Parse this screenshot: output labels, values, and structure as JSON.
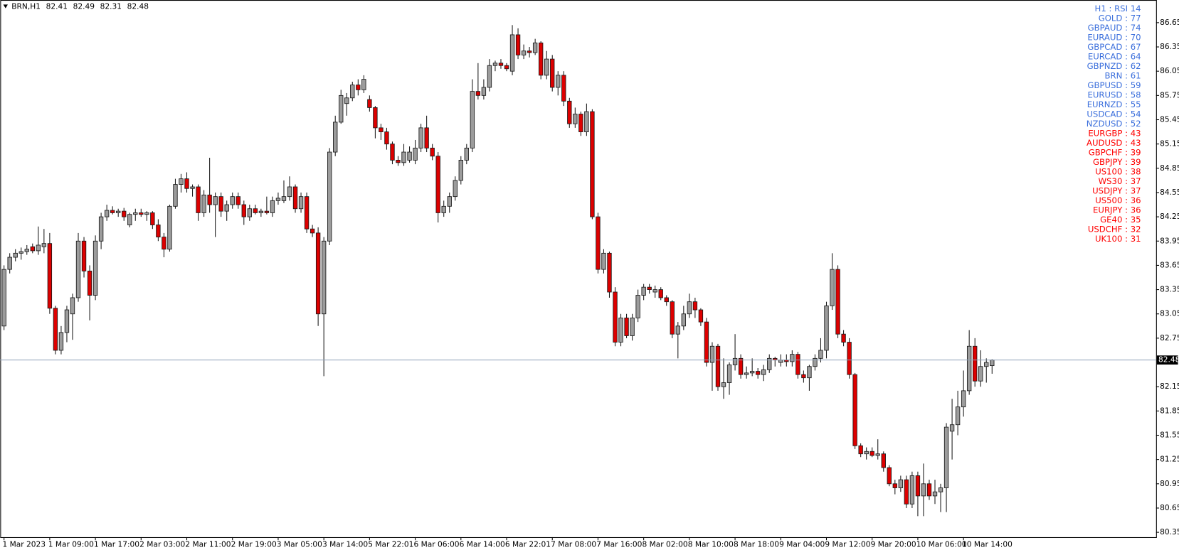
{
  "chart_data": {
    "type": "candlestick",
    "symbol": "BRN,H1",
    "header_ohlc": [
      82.41,
      82.49,
      82.31,
      82.48
    ],
    "current_price": 82.48,
    "up_color": "#9c9c9c",
    "down_color": "#dd0000",
    "outline_color": "#1a1a1a",
    "price_line_color": "#8fa0b8",
    "ylim": [
      80.29,
      86.93
    ],
    "yticks": [
      86.65,
      86.35,
      86.05,
      85.75,
      85.45,
      85.15,
      84.85,
      84.55,
      84.25,
      83.95,
      83.65,
      83.35,
      83.05,
      82.75,
      82.15,
      81.85,
      81.55,
      81.25,
      80.95,
      80.65,
      80.35
    ],
    "categories": [
      "1 Mar 2023",
      null,
      null,
      null,
      null,
      null,
      null,
      null,
      "1 Mar 09:00",
      null,
      null,
      null,
      null,
      null,
      null,
      null,
      "1 Mar 17:00",
      null,
      null,
      null,
      null,
      null,
      null,
      null,
      "2 Mar 03:00",
      null,
      null,
      null,
      null,
      null,
      null,
      null,
      "2 Mar 11:00",
      null,
      null,
      null,
      null,
      null,
      null,
      null,
      "2 Mar 19:00",
      null,
      null,
      null,
      null,
      null,
      null,
      null,
      "3 Mar 05:00",
      null,
      null,
      null,
      null,
      null,
      null,
      null,
      "3 Mar 14:00",
      null,
      null,
      null,
      null,
      null,
      null,
      null,
      "5 Mar 22:01",
      null,
      null,
      null,
      null,
      null,
      null,
      null,
      "6 Mar 06:00",
      null,
      null,
      null,
      null,
      null,
      null,
      null,
      "6 Mar 14:00",
      null,
      null,
      null,
      null,
      null,
      null,
      null,
      "6 Mar 22:01",
      null,
      null,
      null,
      null,
      null,
      null,
      null,
      "7 Mar 08:00",
      null,
      null,
      null,
      null,
      null,
      null,
      null,
      "7 Mar 16:00",
      null,
      null,
      null,
      null,
      null,
      null,
      null,
      "8 Mar 02:00",
      null,
      null,
      null,
      null,
      null,
      null,
      null,
      "8 Mar 10:00",
      null,
      null,
      null,
      null,
      null,
      null,
      null,
      "8 Mar 18:00",
      null,
      null,
      null,
      null,
      null,
      null,
      null,
      "9 Mar 04:00",
      null,
      null,
      null,
      null,
      null,
      null,
      null,
      "9 Mar 12:00",
      null,
      null,
      null,
      null,
      null,
      null,
      null,
      "9 Mar 20:00",
      null,
      null,
      null,
      null,
      null,
      null,
      null,
      "10 Mar 06:00",
      null,
      null,
      null,
      null,
      null,
      null,
      null,
      "10 Mar 14:00",
      null,
      null,
      null,
      null,
      null
    ],
    "ohlc": [
      [
        82.9,
        83.65,
        82.85,
        83.6
      ],
      [
        83.6,
        83.8,
        83.55,
        83.75
      ],
      [
        83.75,
        83.85,
        83.7,
        83.8
      ],
      [
        83.8,
        83.87,
        83.72,
        83.82
      ],
      [
        83.82,
        83.9,
        83.78,
        83.85
      ],
      [
        83.88,
        83.92,
        83.8,
        83.83
      ],
      [
        83.83,
        84.13,
        83.78,
        83.9
      ],
      [
        83.88,
        84.1,
        83.8,
        83.92
      ],
      [
        83.92,
        84.05,
        83.05,
        83.12
      ],
      [
        83.12,
        83.15,
        82.55,
        82.6
      ],
      [
        82.6,
        82.9,
        82.55,
        82.82
      ],
      [
        82.82,
        83.15,
        82.7,
        83.1
      ],
      [
        83.05,
        83.3,
        82.73,
        83.25
      ],
      [
        83.25,
        84.05,
        83.2,
        83.95
      ],
      [
        83.95,
        84.0,
        83.5,
        83.58
      ],
      [
        83.58,
        83.65,
        82.97,
        83.28
      ],
      [
        83.28,
        84.02,
        83.22,
        83.95
      ],
      [
        83.95,
        84.3,
        83.85,
        84.25
      ],
      [
        84.25,
        84.4,
        84.2,
        84.33
      ],
      [
        84.33,
        84.38,
        84.28,
        84.3
      ],
      [
        84.3,
        84.35,
        84.25,
        84.32
      ],
      [
        84.32,
        84.36,
        84.2,
        84.25
      ],
      [
        84.15,
        84.3,
        84.12,
        84.28
      ],
      [
        84.28,
        84.35,
        84.2,
        84.3
      ],
      [
        84.3,
        84.35,
        84.25,
        84.28
      ],
      [
        84.28,
        84.32,
        84.2,
        84.3
      ],
      [
        84.3,
        84.32,
        84.1,
        84.15
      ],
      [
        84.15,
        84.22,
        83.95,
        84.0
      ],
      [
        84.0,
        84.05,
        83.75,
        83.85
      ],
      [
        83.85,
        84.4,
        83.82,
        84.38
      ],
      [
        84.38,
        84.72,
        84.35,
        84.65
      ],
      [
        84.65,
        84.78,
        84.55,
        84.72
      ],
      [
        84.72,
        84.8,
        84.55,
        84.6
      ],
      [
        84.6,
        84.65,
        84.5,
        84.62
      ],
      [
        84.62,
        84.65,
        84.2,
        84.3
      ],
      [
        84.3,
        84.58,
        84.25,
        84.52
      ],
      [
        84.52,
        84.98,
        84.3,
        84.4
      ],
      [
        84.4,
        84.55,
        84.0,
        84.5
      ],
      [
        84.5,
        84.55,
        84.25,
        84.32
      ],
      [
        84.32,
        84.45,
        84.2,
        84.4
      ],
      [
        84.4,
        84.55,
        84.35,
        84.5
      ],
      [
        84.5,
        84.55,
        84.35,
        84.4
      ],
      [
        84.4,
        84.45,
        84.15,
        84.25
      ],
      [
        84.25,
        84.4,
        84.2,
        84.35
      ],
      [
        84.35,
        84.4,
        84.28,
        84.3
      ],
      [
        84.3,
        84.35,
        84.25,
        84.32
      ],
      [
        84.32,
        84.5,
        84.28,
        84.3
      ],
      [
        84.3,
        84.5,
        84.25,
        84.45
      ],
      [
        84.45,
        84.55,
        84.4,
        84.48
      ],
      [
        84.45,
        84.7,
        84.42,
        84.5
      ],
      [
        84.5,
        84.75,
        84.45,
        84.62
      ],
      [
        84.62,
        84.65,
        84.3,
        84.35
      ],
      [
        84.35,
        84.55,
        84.3,
        84.5
      ],
      [
        84.5,
        84.55,
        84.05,
        84.1
      ],
      [
        84.1,
        84.15,
        84.0,
        84.05
      ],
      [
        84.05,
        84.12,
        82.9,
        83.05
      ],
      [
        83.05,
        84.0,
        82.28,
        83.95
      ],
      [
        83.95,
        85.1,
        83.9,
        85.05
      ],
      [
        85.05,
        85.5,
        85.0,
        85.42
      ],
      [
        85.42,
        85.82,
        85.4,
        85.75
      ],
      [
        85.65,
        85.78,
        85.5,
        85.72
      ],
      [
        85.72,
        85.92,
        85.68,
        85.88
      ],
      [
        85.88,
        85.95,
        85.75,
        85.82
      ],
      [
        85.82,
        86.0,
        85.78,
        85.95
      ],
      [
        85.7,
        85.75,
        85.55,
        85.6
      ],
      [
        85.6,
        85.62,
        85.22,
        85.35
      ],
      [
        85.35,
        85.4,
        85.2,
        85.3
      ],
      [
        85.3,
        85.35,
        85.08,
        85.15
      ],
      [
        85.15,
        85.18,
        84.9,
        84.95
      ],
      [
        84.95,
        85.0,
        84.88,
        84.92
      ],
      [
        84.92,
        85.15,
        84.88,
        85.05
      ],
      [
        84.95,
        85.12,
        84.92,
        85.05
      ],
      [
        84.95,
        85.2,
        84.9,
        85.1
      ],
      [
        85.1,
        85.4,
        85.05,
        85.35
      ],
      [
        85.35,
        85.5,
        85.05,
        85.1
      ],
      [
        85.1,
        85.15,
        84.95,
        85.0
      ],
      [
        85.0,
        85.05,
        84.18,
        84.3
      ],
      [
        84.3,
        84.45,
        84.25,
        84.38
      ],
      [
        84.38,
        84.55,
        84.3,
        84.5
      ],
      [
        84.5,
        84.75,
        84.45,
        84.7
      ],
      [
        84.7,
        85.0,
        84.65,
        84.95
      ],
      [
        84.95,
        85.15,
        84.9,
        85.1
      ],
      [
        85.1,
        85.95,
        85.05,
        85.8
      ],
      [
        85.8,
        86.15,
        85.7,
        85.75
      ],
      [
        85.75,
        85.95,
        85.7,
        85.85
      ],
      [
        85.85,
        86.2,
        85.8,
        86.12
      ],
      [
        86.12,
        86.18,
        86.05,
        86.15
      ],
      [
        86.15,
        86.2,
        86.08,
        86.12
      ],
      [
        86.12,
        86.15,
        86.05,
        86.08
      ],
      [
        86.05,
        86.62,
        86.0,
        86.5
      ],
      [
        86.5,
        86.58,
        86.2,
        86.25
      ],
      [
        86.25,
        86.38,
        86.2,
        86.3
      ],
      [
        86.3,
        86.35,
        86.22,
        86.28
      ],
      [
        86.28,
        86.45,
        86.25,
        86.4
      ],
      [
        86.4,
        86.42,
        85.95,
        86.0
      ],
      [
        86.0,
        86.3,
        85.95,
        86.2
      ],
      [
        86.2,
        86.25,
        85.8,
        85.85
      ],
      [
        85.85,
        86.05,
        85.75,
        86.0
      ],
      [
        86.0,
        86.05,
        85.62,
        85.68
      ],
      [
        85.68,
        85.72,
        85.35,
        85.4
      ],
      [
        85.4,
        85.6,
        85.35,
        85.52
      ],
      [
        85.52,
        85.55,
        85.25,
        85.3
      ],
      [
        85.3,
        85.65,
        85.25,
        85.55
      ],
      [
        85.55,
        85.58,
        84.22,
        84.25
      ],
      [
        84.25,
        84.3,
        83.55,
        83.6
      ],
      [
        83.6,
        83.85,
        83.55,
        83.8
      ],
      [
        83.8,
        83.82,
        83.25,
        83.32
      ],
      [
        83.32,
        83.38,
        82.65,
        82.7
      ],
      [
        82.7,
        83.05,
        82.65,
        83.0
      ],
      [
        83.0,
        83.05,
        82.75,
        82.78
      ],
      [
        82.78,
        83.05,
        82.72,
        83.0
      ],
      [
        83.0,
        83.35,
        82.95,
        83.28
      ],
      [
        83.28,
        83.42,
        83.22,
        83.38
      ],
      [
        83.38,
        83.42,
        83.3,
        83.35
      ],
      [
        83.32,
        83.4,
        83.25,
        83.35
      ],
      [
        83.35,
        83.38,
        83.22,
        83.25
      ],
      [
        83.25,
        83.28,
        83.15,
        83.2
      ],
      [
        83.2,
        83.22,
        82.75,
        82.8
      ],
      [
        82.8,
        82.95,
        82.5,
        82.9
      ],
      [
        82.9,
        83.15,
        82.85,
        83.05
      ],
      [
        83.05,
        83.3,
        83.0,
        83.2
      ],
      [
        83.2,
        83.25,
        83.0,
        83.1
      ],
      [
        83.1,
        83.12,
        82.9,
        82.95
      ],
      [
        82.95,
        83.0,
        82.4,
        82.45
      ],
      [
        82.45,
        82.7,
        82.1,
        82.65
      ],
      [
        82.65,
        82.68,
        82.1,
        82.15
      ],
      [
        82.15,
        82.5,
        82.0,
        82.2
      ],
      [
        82.2,
        82.45,
        82.05,
        82.42
      ],
      [
        82.42,
        82.8,
        82.35,
        82.5
      ],
      [
        82.5,
        82.55,
        82.25,
        82.3
      ],
      [
        82.3,
        82.4,
        82.25,
        82.32
      ],
      [
        82.32,
        82.5,
        82.28,
        82.34
      ],
      [
        82.34,
        82.38,
        82.25,
        82.3
      ],
      [
        82.3,
        82.42,
        82.22,
        82.36
      ],
      [
        82.36,
        82.55,
        82.32,
        82.5
      ],
      [
        82.5,
        82.52,
        82.4,
        82.48
      ],
      [
        82.45,
        82.55,
        82.4,
        82.48
      ],
      [
        82.48,
        82.55,
        82.4,
        82.46
      ],
      [
        82.46,
        82.6,
        82.4,
        82.55
      ],
      [
        82.55,
        82.58,
        82.25,
        82.3
      ],
      [
        82.3,
        82.35,
        82.2,
        82.26
      ],
      [
        82.26,
        82.42,
        82.1,
        82.4
      ],
      [
        82.4,
        82.55,
        82.35,
        82.5
      ],
      [
        82.5,
        82.75,
        82.45,
        82.6
      ],
      [
        82.6,
        83.2,
        82.5,
        83.15
      ],
      [
        83.15,
        83.8,
        83.1,
        83.6
      ],
      [
        83.6,
        83.65,
        82.75,
        82.8
      ],
      [
        82.8,
        82.85,
        82.65,
        82.7
      ],
      [
        82.7,
        82.75,
        82.25,
        82.3
      ],
      [
        82.3,
        82.32,
        81.38,
        81.42
      ],
      [
        81.42,
        81.45,
        81.28,
        81.32
      ],
      [
        81.32,
        81.4,
        81.25,
        81.35
      ],
      [
        81.35,
        81.4,
        81.28,
        81.3
      ],
      [
        81.3,
        81.5,
        81.25,
        81.32
      ],
      [
        81.32,
        81.35,
        81.1,
        81.15
      ],
      [
        81.15,
        81.18,
        80.92,
        80.95
      ],
      [
        80.95,
        81.0,
        80.82,
        80.9
      ],
      [
        80.9,
        81.05,
        80.85,
        81.0
      ],
      [
        81.0,
        81.05,
        80.65,
        80.7
      ],
      [
        80.7,
        81.1,
        80.65,
        81.05
      ],
      [
        81.05,
        81.1,
        80.55,
        80.8
      ],
      [
        80.8,
        81.2,
        80.55,
        80.95
      ],
      [
        80.95,
        81.0,
        80.75,
        80.8
      ],
      [
        80.8,
        81.0,
        80.7,
        80.85
      ],
      [
        80.85,
        80.95,
        80.6,
        80.9
      ],
      [
        80.9,
        81.7,
        80.6,
        81.65
      ],
      [
        81.6,
        82.0,
        81.25,
        81.68
      ],
      [
        81.68,
        82.1,
        81.55,
        81.9
      ],
      [
        81.9,
        82.35,
        81.78,
        82.1
      ],
      [
        82.1,
        82.85,
        82.05,
        82.65
      ],
      [
        82.65,
        82.75,
        82.15,
        82.22
      ],
      [
        82.22,
        82.6,
        82.15,
        82.4
      ],
      [
        82.4,
        82.5,
        82.2,
        82.45
      ],
      [
        82.41,
        82.49,
        82.31,
        82.48
      ]
    ],
    "rsi_panel": {
      "title": "H1 : RSI 14",
      "items": [
        {
          "text": "GOLD : 77",
          "color": "#3b6fdc"
        },
        {
          "text": "GBPAUD : 74",
          "color": "#3b6fdc"
        },
        {
          "text": "EURAUD : 70",
          "color": "#3b6fdc"
        },
        {
          "text": "GBPCAD : 67",
          "color": "#3b6fdc"
        },
        {
          "text": "EURCAD : 64",
          "color": "#3b6fdc"
        },
        {
          "text": "GBPNZD : 62",
          "color": "#3b6fdc"
        },
        {
          "text": "BRN : 61",
          "color": "#3b6fdc"
        },
        {
          "text": "GBPUSD : 59",
          "color": "#3b6fdc"
        },
        {
          "text": "EURUSD : 58",
          "color": "#3b6fdc"
        },
        {
          "text": "EURNZD : 55",
          "color": "#3b6fdc"
        },
        {
          "text": "USDCAD : 54",
          "color": "#3b6fdc"
        },
        {
          "text": "NZDUSD : 52",
          "color": "#3b6fdc"
        },
        {
          "text": "EURGBP : 43",
          "color": "#ff0000"
        },
        {
          "text": "AUDUSD : 43",
          "color": "#ff0000"
        },
        {
          "text": "GBPCHF : 39",
          "color": "#ff0000"
        },
        {
          "text": "GBPJPY : 39",
          "color": "#ff0000"
        },
        {
          "text": "US100 : 38",
          "color": "#ff0000"
        },
        {
          "text": "WS30 : 37",
          "color": "#ff0000"
        },
        {
          "text": "USDJPY : 37",
          "color": "#ff0000"
        },
        {
          "text": "US500 : 36",
          "color": "#ff0000"
        },
        {
          "text": "EURJPY : 36",
          "color": "#ff0000"
        },
        {
          "text": "GE40 : 35",
          "color": "#ff0000"
        },
        {
          "text": "USDCHF : 32",
          "color": "#ff0000"
        },
        {
          "text": "UK100 : 31",
          "color": "#ff0000"
        }
      ]
    }
  }
}
